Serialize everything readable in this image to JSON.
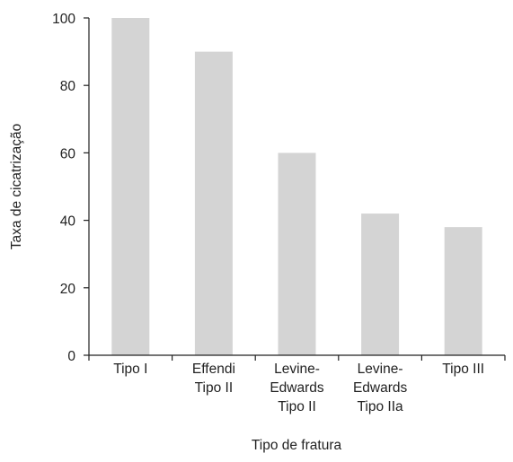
{
  "chart_data": {
    "type": "bar",
    "categories": [
      [
        "Tipo I"
      ],
      [
        "Effendi",
        "Tipo II"
      ],
      [
        "Levine-",
        "Edwards",
        "Tipo II"
      ],
      [
        "Levine-",
        "Edwards",
        "Tipo IIa"
      ],
      [
        "Tipo III"
      ]
    ],
    "values": [
      100,
      90,
      60,
      42,
      38
    ],
    "xlabel": "Tipo de fratura",
    "ylabel": "Taxa de cicatrização",
    "ylim": [
      0,
      100
    ],
    "yticks": [
      0,
      20,
      40,
      60,
      80,
      100
    ],
    "grid": false,
    "bar_color": "#d4d4d4",
    "axis_color": "#222222"
  }
}
